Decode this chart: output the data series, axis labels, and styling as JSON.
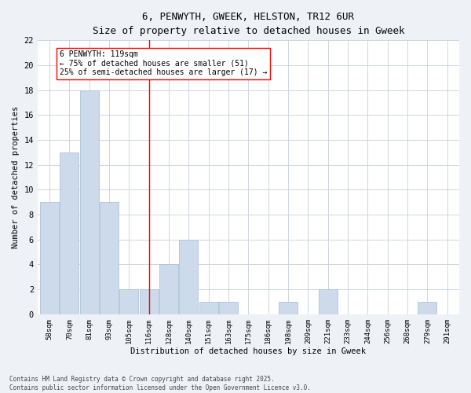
{
  "title_line1": "6, PENWYTH, GWEEK, HELSTON, TR12 6UR",
  "title_line2": "Size of property relative to detached houses in Gweek",
  "xlabel": "Distribution of detached houses by size in Gweek",
  "ylabel": "Number of detached properties",
  "bar_labels": [
    "58sqm",
    "70sqm",
    "81sqm",
    "93sqm",
    "105sqm",
    "116sqm",
    "128sqm",
    "140sqm",
    "151sqm",
    "163sqm",
    "175sqm",
    "186sqm",
    "198sqm",
    "209sqm",
    "221sqm",
    "233sqm",
    "244sqm",
    "256sqm",
    "268sqm",
    "279sqm",
    "291sqm"
  ],
  "bar_values": [
    9,
    13,
    18,
    9,
    2,
    2,
    4,
    6,
    1,
    1,
    0,
    0,
    1,
    0,
    2,
    0,
    0,
    0,
    0,
    1,
    0
  ],
  "bar_color": "#ccdaeb",
  "bar_edgecolor": "#adc4d8",
  "vline_x_index": 5,
  "vline_color": "red",
  "annotation_title": "6 PENWYTH: 119sqm",
  "annotation_line1": "← 75% of detached houses are smaller (51)",
  "annotation_line2": "25% of semi-detached houses are larger (17) →",
  "annotation_box_color": "white",
  "annotation_box_edgecolor": "red",
  "ylim": [
    0,
    22
  ],
  "yticks": [
    0,
    2,
    4,
    6,
    8,
    10,
    12,
    14,
    16,
    18,
    20,
    22
  ],
  "footnote_line1": "Contains HM Land Registry data © Crown copyright and database right 2025.",
  "footnote_line2": "Contains public sector information licensed under the Open Government Licence v3.0.",
  "background_color": "#eef2f7",
  "plot_bg_color": "#ffffff",
  "grid_color": "#c8d0da"
}
